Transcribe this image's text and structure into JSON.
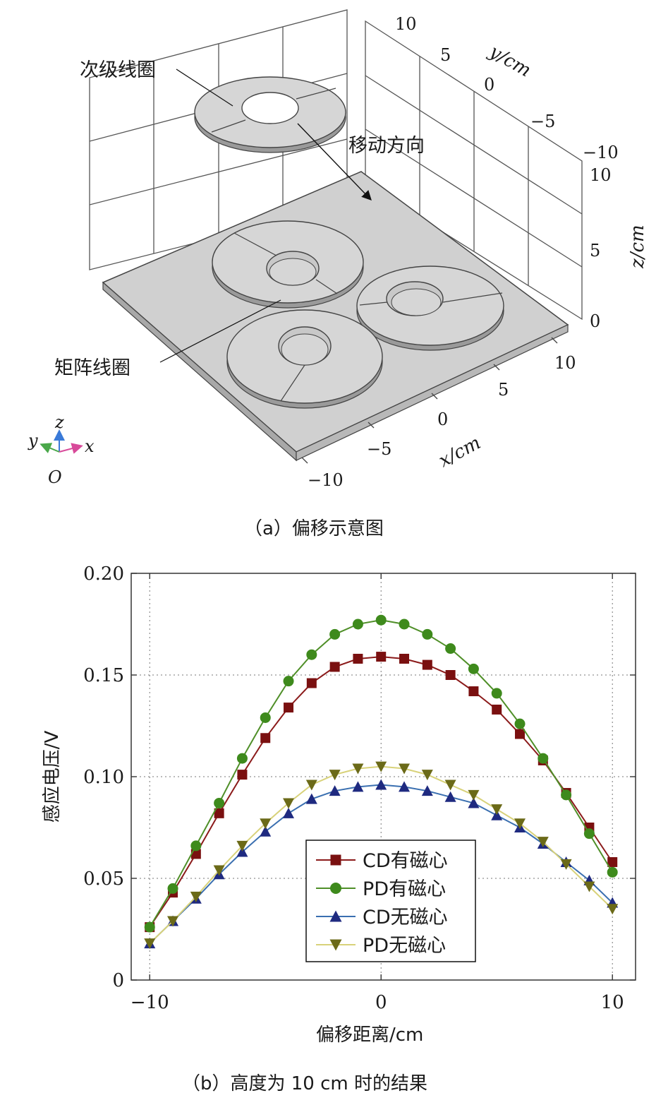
{
  "figure_a": {
    "caption": "（a）偏移示意图",
    "label_secondary": "次级线圈",
    "label_direction": "移动方向",
    "label_matrix": "矩阵线圈",
    "axis_y": "y/cm",
    "axis_z": "z/cm",
    "axis_x": "x/cm",
    "y_ticks": [
      "10",
      "5",
      "0",
      "−5",
      "−10"
    ],
    "z_ticks": [
      "10",
      "5",
      "0"
    ],
    "x_ticks": [
      "10",
      "5",
      "0",
      "−5",
      "−10"
    ],
    "triad": {
      "z": "z",
      "y": "y",
      "x": "x",
      "o": "O"
    }
  },
  "figure_b": {
    "caption": "（b）高度为 10 cm 时的结果"
  },
  "chart_data": {
    "type": "line",
    "xlabel": "偏移距离/cm",
    "ylabel": "感应电压/V",
    "xlim": [
      -10.8,
      11.0
    ],
    "ylim": [
      0,
      0.2
    ],
    "xticks": [
      -10,
      0,
      10
    ],
    "xtick_labels": [
      "−10",
      "0",
      "10"
    ],
    "yticks": [
      0,
      0.05,
      0.1,
      0.15,
      0.2
    ],
    "ytick_labels": [
      "0",
      "0.05",
      "0.10",
      "0.15",
      "0.20"
    ],
    "grid": true,
    "legend_position": "lower-center",
    "x": [
      -10,
      -9,
      -8,
      -7,
      -6,
      -5,
      -4,
      -3,
      -2,
      -1,
      0,
      1,
      2,
      3,
      4,
      5,
      6,
      7,
      8,
      9,
      10
    ],
    "series": [
      {
        "name": "CD有磁心",
        "marker": "square",
        "color": "#8b1a1a",
        "marker_color": "#7a1010",
        "values": [
          0.026,
          0.043,
          0.062,
          0.082,
          0.101,
          0.119,
          0.134,
          0.146,
          0.154,
          0.158,
          0.159,
          0.158,
          0.155,
          0.15,
          0.142,
          0.133,
          0.121,
          0.108,
          0.092,
          0.075,
          0.058
        ]
      },
      {
        "name": "PD有磁心",
        "marker": "circle",
        "color": "#4f8f28",
        "marker_color": "#3e8a1c",
        "values": [
          0.026,
          0.045,
          0.066,
          0.087,
          0.109,
          0.129,
          0.147,
          0.16,
          0.17,
          0.175,
          0.177,
          0.175,
          0.17,
          0.163,
          0.153,
          0.141,
          0.126,
          0.109,
          0.091,
          0.072,
          0.053
        ]
      },
      {
        "name": "CD无磁心",
        "marker": "triangle-up",
        "color": "#3a6fb0",
        "marker_color": "#1f2a80",
        "values": [
          0.018,
          0.029,
          0.04,
          0.052,
          0.063,
          0.073,
          0.082,
          0.089,
          0.093,
          0.095,
          0.096,
          0.095,
          0.093,
          0.09,
          0.087,
          0.081,
          0.075,
          0.067,
          0.058,
          0.049,
          0.038
        ]
      },
      {
        "name": "PD无磁心",
        "marker": "triangle-down",
        "color": "#d8d27a",
        "marker_color": "#6b6a18",
        "values": [
          0.018,
          0.029,
          0.041,
          0.054,
          0.066,
          0.077,
          0.087,
          0.096,
          0.101,
          0.104,
          0.105,
          0.104,
          0.101,
          0.096,
          0.091,
          0.084,
          0.077,
          0.068,
          0.057,
          0.046,
          0.035
        ]
      }
    ]
  }
}
